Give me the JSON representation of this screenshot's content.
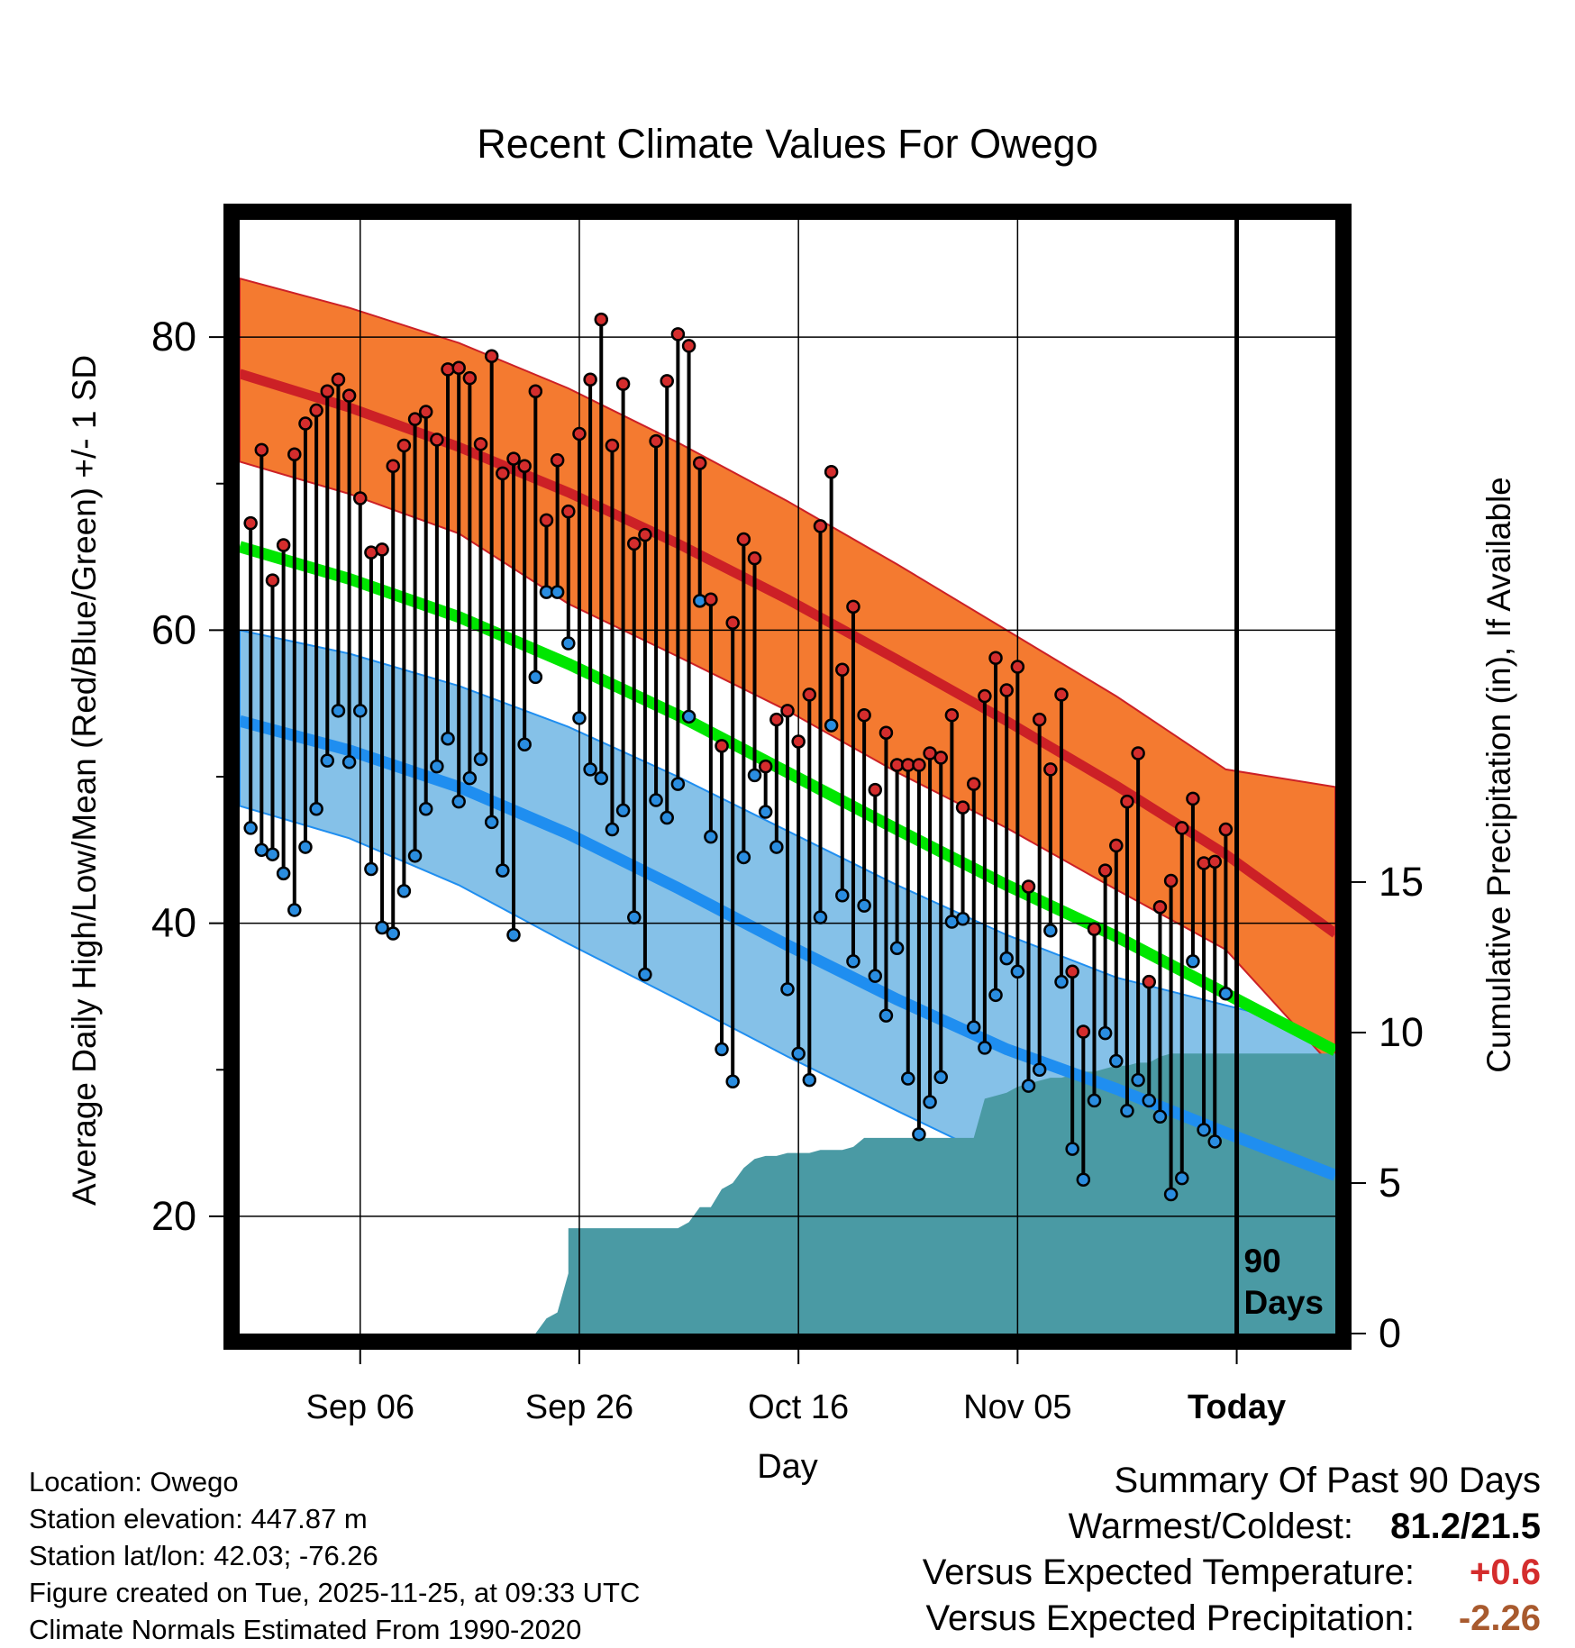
{
  "colors": {
    "high_band": "#f47a30",
    "high_mean": "#cc2026",
    "low_band": "#85c1e8",
    "low_mean": "#1f8ef0",
    "mean_line": "#00e600",
    "precip": "#4a9aa4",
    "dot_high": "#d42d2d",
    "dot_low": "#2a8de0",
    "stem": "#000000",
    "delta_temp": "#d42d2d",
    "delta_precip": "#a85a2e"
  },
  "chart_data": {
    "type": "line",
    "title": "Recent Climate Values For Owego",
    "xlabel": "Day",
    "ylabel_left": "Average Daily High/Low/Mean (Red/Blue/Green) +/- 1 SD",
    "ylabel_right": "Cumulative Precipitation (in), If Available",
    "x_ticks": [
      {
        "day": 10,
        "label": "Sep 06"
      },
      {
        "day": 30,
        "label": "Sep 26"
      },
      {
        "day": 50,
        "label": "Oct 16"
      },
      {
        "day": 70,
        "label": "Nov 05"
      },
      {
        "day": 90,
        "label": "Today"
      }
    ],
    "xlim": [
      -1,
      99
    ],
    "ylim_left": [
      12,
      88
    ],
    "y_ticks_left": [
      20,
      40,
      60,
      80
    ],
    "ylim_right": [
      0,
      37
    ],
    "y_ticks_right": [
      0,
      5,
      10,
      15
    ],
    "today_day": 90,
    "today_label": [
      "90",
      "Days"
    ],
    "normals": {
      "days": [
        -1,
        9,
        19,
        29,
        39,
        49,
        59,
        69,
        79,
        89,
        99
      ],
      "high_mean": [
        77.5,
        75.2,
        72.5,
        69.4,
        65.9,
        62.1,
        58.0,
        53.8,
        49.4,
        44.7,
        39.3
      ],
      "high_upper": [
        84.0,
        82.0,
        79.6,
        76.5,
        72.8,
        68.8,
        64.5,
        60.0,
        55.5,
        50.5,
        49.3
      ],
      "high_lower": [
        71.5,
        69.3,
        66.6,
        61.8,
        58.2,
        54.5,
        50.3,
        46.5,
        42.3,
        38.2,
        30.0
      ],
      "low_mean": [
        53.8,
        51.8,
        49.3,
        46.1,
        42.4,
        38.5,
        34.8,
        31.4,
        28.7,
        25.7,
        22.8
      ],
      "low_upper": [
        60.0,
        58.4,
        56.2,
        53.4,
        50.0,
        46.3,
        42.6,
        39.2,
        36.3,
        34.4,
        32.5
      ],
      "low_lower": [
        48.0,
        45.8,
        42.6,
        38.6,
        34.8,
        30.9,
        27.2,
        23.6,
        20.6,
        18.0,
        14.5
      ],
      "mean_line": [
        65.7,
        63.5,
        60.9,
        57.7,
        54.2,
        50.3,
        46.4,
        42.6,
        39.1,
        35.2,
        31.3
      ]
    },
    "daily": {
      "start_day": 0,
      "high": [
        67.3,
        72.3,
        63.4,
        65.8,
        72.0,
        74.1,
        75.0,
        76.3,
        77.1,
        76.0,
        69.0,
        65.3,
        65.5,
        71.2,
        72.6,
        74.4,
        74.9,
        73.0,
        77.8,
        77.9,
        77.2,
        72.7,
        78.7,
        70.7,
        71.7,
        71.2,
        76.3,
        67.5,
        71.6,
        68.1,
        73.4,
        77.1,
        81.2,
        72.6,
        76.8,
        65.9,
        66.5,
        72.9,
        77.0,
        80.2,
        79.4,
        71.4,
        62.1,
        52.1,
        60.5,
        66.2,
        64.9,
        50.7,
        53.9,
        54.5,
        52.4,
        55.6,
        67.1,
        70.8,
        57.3,
        61.6,
        54.2,
        49.1,
        53.0,
        50.8,
        50.8,
        50.8,
        51.6,
        51.3,
        54.2,
        47.9,
        49.5,
        55.5,
        58.1,
        55.9,
        57.5,
        42.5,
        53.9,
        50.5,
        55.6,
        36.7,
        32.6,
        39.6,
        43.6,
        45.3,
        48.3,
        51.6,
        36.0,
        41.1,
        42.9,
        46.5,
        48.5,
        44.1,
        44.2,
        46.4
      ],
      "low": [
        46.5,
        45.0,
        44.7,
        43.4,
        40.9,
        45.2,
        47.8,
        51.1,
        54.5,
        51.0,
        54.5,
        43.7,
        39.7,
        39.3,
        42.2,
        44.6,
        47.8,
        50.7,
        52.6,
        48.3,
        49.9,
        51.2,
        46.9,
        43.6,
        39.2,
        52.2,
        56.8,
        62.6,
        62.6,
        59.1,
        54.0,
        50.5,
        49.9,
        46.4,
        47.7,
        40.4,
        36.5,
        48.4,
        47.2,
        49.5,
        54.1,
        62.0,
        45.9,
        31.4,
        29.2,
        44.5,
        50.1,
        47.6,
        45.2,
        35.5,
        31.1,
        29.3,
        40.4,
        53.5,
        41.9,
        37.4,
        41.2,
        36.4,
        33.7,
        38.3,
        29.4,
        25.6,
        27.8,
        29.5,
        40.1,
        40.3,
        32.9,
        31.5,
        35.1,
        37.6,
        36.7,
        28.9,
        30.0,
        39.5,
        36.0,
        24.6,
        22.5,
        27.9,
        32.5,
        30.6,
        27.2,
        29.3,
        27.9,
        26.8,
        21.5,
        22.6,
        37.4,
        25.9,
        25.1,
        35.2
      ]
    },
    "precip": {
      "days": [
        26,
        27,
        28,
        29,
        29,
        30,
        39,
        40,
        41,
        42,
        43,
        44,
        45,
        46,
        47,
        48,
        49,
        50,
        51,
        52,
        53,
        54,
        55,
        56,
        57,
        58,
        59,
        60,
        61,
        62,
        63,
        64,
        65,
        66,
        67,
        68,
        69,
        70,
        71,
        72,
        73,
        74,
        75,
        76,
        77,
        78,
        79,
        80,
        81,
        82,
        83,
        84,
        85,
        86,
        99
      ],
      "values": [
        0.0,
        0.5,
        0.7,
        2.0,
        3.5,
        3.5,
        3.5,
        3.7,
        4.2,
        4.2,
        4.8,
        5.0,
        5.5,
        5.8,
        5.9,
        5.9,
        6.0,
        6.0,
        6.0,
        6.1,
        6.1,
        6.1,
        6.2,
        6.5,
        6.5,
        6.5,
        6.5,
        6.5,
        6.5,
        6.5,
        6.5,
        6.5,
        6.5,
        6.5,
        7.8,
        7.9,
        8.0,
        8.2,
        8.3,
        8.4,
        8.5,
        8.5,
        8.6,
        8.7,
        8.7,
        8.8,
        8.9,
        8.9,
        9.0,
        9.0,
        9.2,
        9.3,
        9.3,
        9.3,
        9.3
      ]
    }
  },
  "footer": {
    "location": "Location: Owego",
    "elevation": "Station elevation: 447.87 m",
    "latlon": "Station lat/lon: 42.03; -76.26",
    "created": "Figure created on Tue, 2025-11-25, at 09:33 UTC",
    "normals": "Climate Normals Estimated From 1990-2020"
  },
  "summary": {
    "title": "Summary Of Past 90 Days",
    "warm_cold_label": "Warmest/Coldest:",
    "warm_cold_value": "81.2/21.5",
    "temp_label": "Versus Expected Temperature:",
    "temp_value": "+0.6",
    "precip_label": "Versus Expected Precipitation:",
    "precip_value": "-2.26"
  }
}
